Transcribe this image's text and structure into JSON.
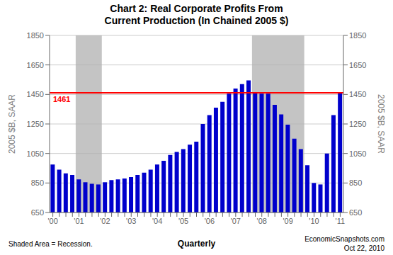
{
  "chart_data": {
    "type": "bar",
    "title": "Chart 2: Real Corporate Profits From\nCurrent Production (In Chained 2005 $)",
    "y_label": "2005 $B, SAAR",
    "y2_label": "2005 $B, SAAR",
    "x_label": "Quarterly",
    "categories": [
      "'00",
      null,
      null,
      null,
      "'01",
      null,
      null,
      null,
      "'02",
      null,
      null,
      null,
      "'03",
      null,
      null,
      null,
      "'04",
      null,
      null,
      null,
      "'05",
      null,
      null,
      null,
      "'06",
      null,
      null,
      null,
      "'07",
      null,
      null,
      null,
      "'08",
      null,
      null,
      null,
      "'09",
      null,
      null,
      null,
      "'10",
      null,
      null,
      null,
      "'11"
    ],
    "values": [
      975,
      940,
      915,
      905,
      875,
      855,
      845,
      840,
      855,
      870,
      875,
      880,
      890,
      905,
      920,
      940,
      975,
      1000,
      1040,
      1060,
      1080,
      1110,
      1130,
      1250,
      1310,
      1360,
      1400,
      1455,
      1490,
      1520,
      1545,
      1460,
      1455,
      1455,
      1380,
      1315,
      1245,
      1150,
      1080,
      970,
      850,
      840,
      1050,
      1310,
      1461
    ],
    "color": "#0000cc",
    "ylim": [
      650,
      1850
    ],
    "yticks": [
      650,
      850,
      1050,
      1250,
      1450,
      1650,
      1850
    ],
    "y2lim": [
      650,
      1850
    ],
    "y2ticks": [
      650,
      850,
      1050,
      1250,
      1450,
      1650,
      1850
    ],
    "grid": true,
    "reference_line": {
      "value": 1461,
      "color": "red"
    },
    "shaded_spans": {
      "color": "#b0b0b0",
      "spans": [
        [
          4,
          7
        ],
        [
          31,
          38
        ]
      ]
    },
    "annotations": [
      "Shaded Area = Recession.",
      "EconomicSnapshots.com",
      "Oct 22, 2010"
    ]
  }
}
